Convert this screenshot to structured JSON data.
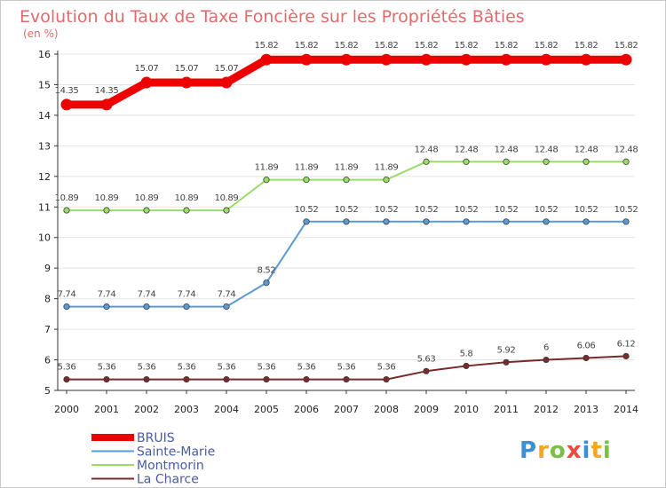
{
  "chart_data": {
    "type": "line",
    "title": "Evolution du Taux de Taxe Foncière sur les Propriétés Bâties",
    "ylabel": "(en %)",
    "xlabel": "",
    "x": [
      "2000",
      "2001",
      "2002",
      "2003",
      "2004",
      "2005",
      "2006",
      "2007",
      "2008",
      "2009",
      "2010",
      "2011",
      "2012",
      "2013",
      "2014"
    ],
    "ylim": [
      5,
      16
    ],
    "yticks": [
      "5",
      "6",
      "7",
      "8",
      "9",
      "10",
      "11",
      "12",
      "13",
      "14",
      "15",
      "16"
    ],
    "grid": true,
    "legend_position": "bottom-left",
    "series": [
      {
        "name": "BRUIS",
        "color": "#ee0000",
        "values": [
          14.35,
          14.35,
          15.07,
          15.07,
          15.07,
          15.82,
          15.82,
          15.82,
          15.82,
          15.82,
          15.82,
          15.82,
          15.82,
          15.82,
          15.82
        ],
        "labels": [
          "14.35",
          "14.35",
          "15.07",
          "15.07",
          "15.07",
          "15.82",
          "15.82",
          "15.82",
          "15.82",
          "15.82",
          "15.82",
          "15.82",
          "15.82",
          "15.82",
          "15.82"
        ]
      },
      {
        "name": "Sainte-Marie",
        "color": "#5b9bd5",
        "values": [
          7.74,
          7.74,
          7.74,
          7.74,
          7.74,
          8.52,
          10.52,
          10.52,
          10.52,
          10.52,
          10.52,
          10.52,
          10.52,
          10.52,
          10.52
        ],
        "labels": [
          "7.74",
          "7.74",
          "7.74",
          "7.74",
          "7.74",
          "8.52",
          "10.52",
          "10.52",
          "10.52",
          "10.52",
          "10.52",
          "10.52",
          "10.52",
          "10.52",
          "10.52"
        ]
      },
      {
        "name": "Montmorin",
        "color": "#99dd66",
        "values": [
          10.89,
          10.89,
          10.89,
          10.89,
          10.89,
          11.89,
          11.89,
          11.89,
          11.89,
          12.48,
          12.48,
          12.48,
          12.48,
          12.48,
          12.48
        ],
        "labels": [
          "10.89",
          "10.89",
          "10.89",
          "10.89",
          "10.89",
          "11.89",
          "11.89",
          "11.89",
          "11.89",
          "12.48",
          "12.48",
          "12.48",
          "12.48",
          "12.48",
          "12.48"
        ]
      },
      {
        "name": "La Charce",
        "color": "#7a2a2a",
        "values": [
          5.36,
          5.36,
          5.36,
          5.36,
          5.36,
          5.36,
          5.36,
          5.36,
          5.36,
          5.63,
          5.8,
          5.92,
          6,
          6.06,
          6.12
        ],
        "labels": [
          "5.36",
          "5.36",
          "5.36",
          "5.36",
          "5.36",
          "5.36",
          "5.36",
          "5.36",
          "5.36",
          "5.63",
          "5.8",
          "5.92",
          "6",
          "6.06",
          "6.12"
        ]
      }
    ]
  },
  "logo": {
    "letters": [
      "P",
      "r",
      "o",
      "x",
      "i",
      "t",
      "i"
    ],
    "colors": [
      "#3a8fd6",
      "#f5a623",
      "#7ac143",
      "#e94b3c",
      "#3a8fd6",
      "#f5a623",
      "#7ac143"
    ]
  }
}
